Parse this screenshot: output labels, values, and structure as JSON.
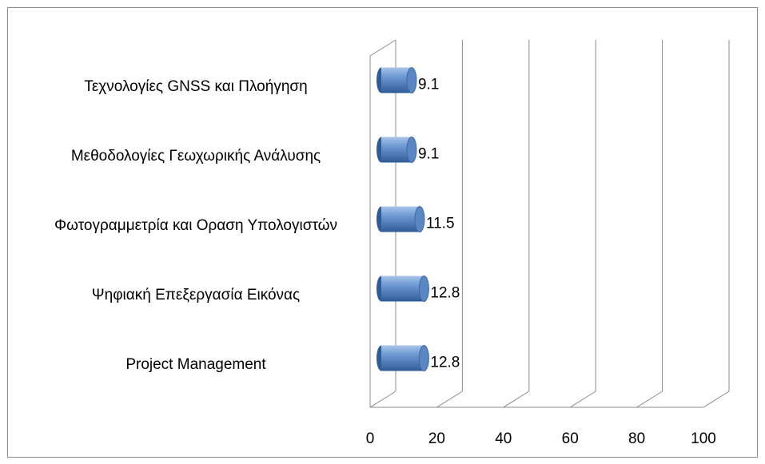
{
  "chart_data": {
    "type": "bar3d_horizontal",
    "categories": [
      "Τεχνολογίες GNSS και Πλοήγηση",
      "Μεθοδολογίες Γεωχωρικής Ανάλυσης",
      "Φωτογραμμετρία και Οραση Υπολογιστών",
      "Ψηφιακή Επεξεργασία Εικόνας",
      "Project Management"
    ],
    "values": [
      9.1,
      9.1,
      11.5,
      12.8,
      12.8
    ],
    "color": "#4f81bd",
    "xlim": [
      0,
      100
    ],
    "xticks": [
      0,
      20,
      40,
      60,
      80,
      100
    ],
    "grid": true
  }
}
